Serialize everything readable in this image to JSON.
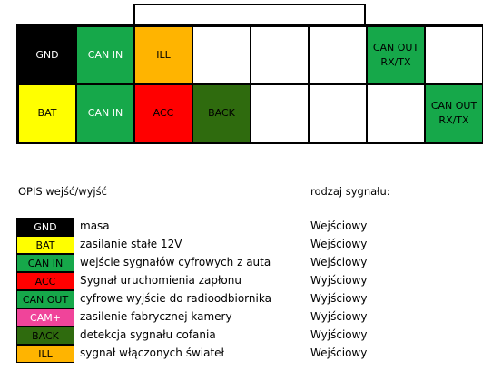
{
  "connector": {
    "cells": [
      {
        "label": "GND",
        "bg": "#000000",
        "fg": "#ffffff"
      },
      {
        "label": "CAN IN",
        "bg": "#16a84a",
        "fg": "#ffffff"
      },
      {
        "label": "ILL",
        "bg": "#ffb400",
        "fg": "#000000"
      },
      {
        "label": "",
        "bg": "#ffffff",
        "fg": "#000000"
      },
      {
        "label": "",
        "bg": "#ffffff",
        "fg": "#000000"
      },
      {
        "label": "",
        "bg": "#ffffff",
        "fg": "#000000"
      },
      {
        "label": "CAN OUT\nRX/TX",
        "bg": "#16a84a",
        "fg": "#000000"
      },
      {
        "label": "",
        "bg": "#ffffff",
        "fg": "#000000"
      },
      {
        "label": "BAT",
        "bg": "#ffff00",
        "fg": "#000000"
      },
      {
        "label": "CAN IN",
        "bg": "#16a84a",
        "fg": "#ffffff"
      },
      {
        "label": "ACC",
        "bg": "#ff0000",
        "fg": "#000000"
      },
      {
        "label": "BACK",
        "bg": "#2f6b0e",
        "fg": "#000000"
      },
      {
        "label": "",
        "bg": "#ffffff",
        "fg": "#000000"
      },
      {
        "label": "",
        "bg": "#ffffff",
        "fg": "#000000"
      },
      {
        "label": "",
        "bg": "#ffffff",
        "fg": "#000000"
      },
      {
        "label": "CAN OUT\nRX/TX",
        "bg": "#16a84a",
        "fg": "#000000"
      }
    ]
  },
  "legend": {
    "header_left": "OPIS wejść/wyjść",
    "header_right": "rodzaj sygnału:",
    "items": [
      {
        "code": "GND",
        "bg": "#000000",
        "fg": "#ffffff",
        "desc": "masa",
        "type": "Wejściowy"
      },
      {
        "code": "BAT",
        "bg": "#ffff00",
        "fg": "#000000",
        "desc": "zasilanie stałe 12V",
        "type": "Wejściowy"
      },
      {
        "code": "CAN IN",
        "bg": "#16a84a",
        "fg": "#000000",
        "desc": "wejście sygnałów cyfrowych z auta",
        "type": "Wejściowy"
      },
      {
        "code": "ACC",
        "bg": "#ff0000",
        "fg": "#000000",
        "desc": "Sygnał uruchomienia zapłonu",
        "type": "Wyjściowy"
      },
      {
        "code": "CAN OUT",
        "bg": "#16a84a",
        "fg": "#000000",
        "desc": "cyfrowe wyjście do radioodbiornika",
        "type": "Wyjściowy"
      },
      {
        "code": "CAM+",
        "bg": "#f0449a",
        "fg": "#ffffff",
        "desc": "zasilenie fabrycznej kamery",
        "type": "Wyjściowy"
      },
      {
        "code": "BACK",
        "bg": "#2f6b0e",
        "fg": "#000000",
        "desc": "detekcja sygnału cofania",
        "type": "Wyjściowy"
      },
      {
        "code": "ILL",
        "bg": "#ffb400",
        "fg": "#000000",
        "desc": "sygnał włączonych świateł",
        "type": "Wejściowy"
      }
    ]
  }
}
